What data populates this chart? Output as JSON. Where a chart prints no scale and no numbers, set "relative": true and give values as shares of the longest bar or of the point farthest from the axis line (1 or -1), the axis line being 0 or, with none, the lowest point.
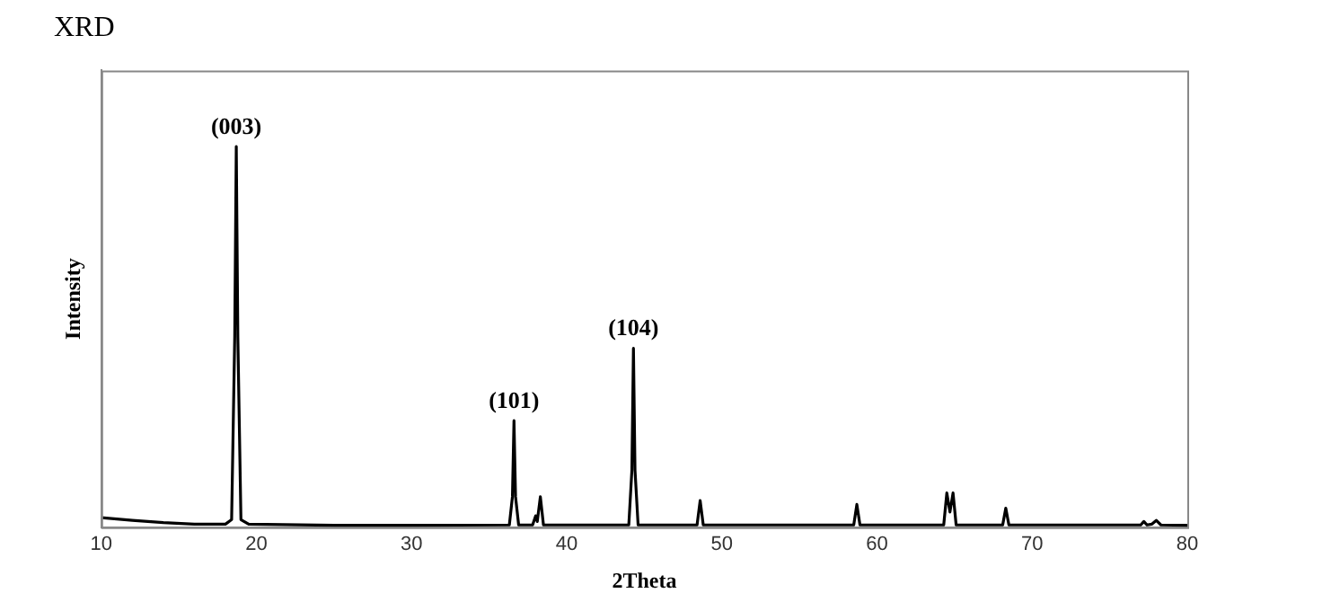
{
  "chart_data": {
    "type": "line",
    "title": "XRD",
    "xlabel": "2Theta",
    "ylabel": "Intensity",
    "relative": true,
    "xlim": [
      10,
      80
    ],
    "xticks": [
      10,
      20,
      30,
      40,
      50,
      60,
      70,
      80
    ],
    "grid": false,
    "legend": false,
    "marker": "none",
    "line_style": "solid",
    "series": [
      {
        "color": "#000000",
        "x": [
          10,
          12,
          14,
          16,
          18,
          18.4,
          18.6,
          18.7,
          18.8,
          19.0,
          19.5,
          25,
          30,
          36.3,
          36.5,
          36.6,
          36.7,
          36.9,
          37.8,
          38.0,
          38.1,
          38.3,
          38.5,
          44.0,
          44.2,
          44.3,
          44.4,
          44.6,
          48.4,
          48.6,
          48.8,
          58.5,
          58.7,
          58.9,
          64.3,
          64.5,
          64.7,
          64.9,
          65.1,
          68.1,
          68.3,
          68.5,
          77.0,
          77.2,
          77.4,
          77.7,
          78.0,
          78.3,
          80
        ],
        "values": [
          0.025,
          0.018,
          0.012,
          0.008,
          0.008,
          0.02,
          0.5,
          1,
          0.5,
          0.02,
          0.008,
          0.005,
          0.005,
          0.006,
          0.08,
          0.28,
          0.08,
          0.006,
          0.006,
          0.03,
          0.015,
          0.08,
          0.006,
          0.006,
          0.15,
          0.47,
          0.15,
          0.006,
          0.006,
          0.07,
          0.006,
          0.006,
          0.06,
          0.006,
          0.006,
          0.09,
          0.04,
          0.09,
          0.006,
          0.006,
          0.05,
          0.006,
          0.006,
          0.015,
          0.006,
          0.008,
          0.018,
          0.006,
          0.005
        ]
      }
    ],
    "annotations": [
      {
        "text": "(003)",
        "x": 18.7,
        "y": 1
      },
      {
        "text": "(101)",
        "x": 36.6,
        "y": 0.28
      },
      {
        "text": "(104)",
        "x": 44.3,
        "y": 0.47
      }
    ]
  }
}
